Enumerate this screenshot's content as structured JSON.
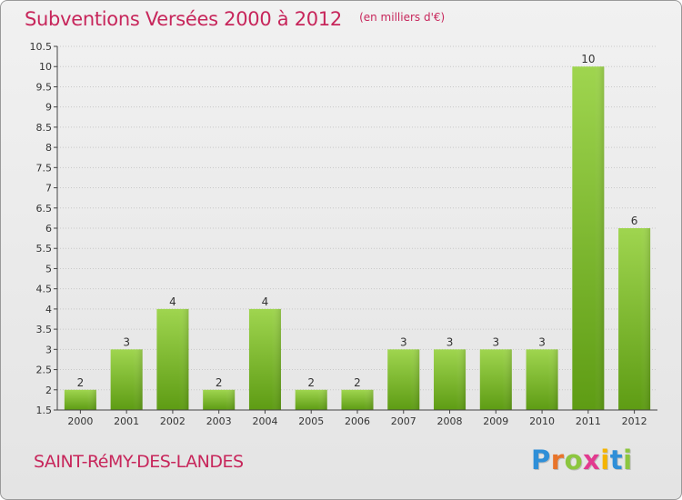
{
  "title": "Subventions Versées 2000 à 2012",
  "subtitle": "(en milliers d'€)",
  "commune": "SAINT-RéMY-DES-LANDES",
  "logo": {
    "letters": [
      "P",
      "r",
      "o",
      "x",
      "i",
      "t",
      "i"
    ],
    "colors": [
      "#2f8fd8",
      "#e8742a",
      "#8cc63f",
      "#e23a8f",
      "#f4b400",
      "#2f8fd8",
      "#8cc63f"
    ]
  },
  "colors": {
    "title": "#c7265b",
    "bar_light": "#9fd54f",
    "bar_dark": "#5e9c14",
    "grid": "#c8c8c8",
    "axis": "#444444"
  },
  "chart_data": {
    "type": "bar",
    "title": "Subventions Versées 2000 à 2012",
    "subtitle": "(en milliers d'€)",
    "categories": [
      "2000",
      "2001",
      "2002",
      "2003",
      "2004",
      "2005",
      "2006",
      "2007",
      "2008",
      "2009",
      "2010",
      "2011",
      "2012"
    ],
    "values": [
      2,
      3,
      4,
      2,
      4,
      2,
      2,
      3,
      3,
      3,
      3,
      10,
      6
    ],
    "value_labels": [
      "2",
      "3",
      "4",
      "2",
      "4",
      "2",
      "2",
      "3",
      "3",
      "3",
      "3",
      "10",
      "6"
    ],
    "xlabel": "",
    "ylabel": "",
    "ylim": [
      1.5,
      10.5
    ],
    "yticks": [
      1.5,
      2,
      2.5,
      3,
      3.5,
      4,
      4.5,
      5,
      5.5,
      6,
      6.5,
      7,
      7.5,
      8,
      8.5,
      9,
      9.5,
      10,
      10.5
    ],
    "ytick_labels": [
      "1.5",
      "2",
      "2.5",
      "3",
      "3.5",
      "4",
      "4.5",
      "5",
      "5.5",
      "6",
      "6.5",
      "7",
      "7.5",
      "8",
      "8.5",
      "9",
      "9.5",
      "10",
      "10.5"
    ],
    "grid": true,
    "legend": "none"
  }
}
